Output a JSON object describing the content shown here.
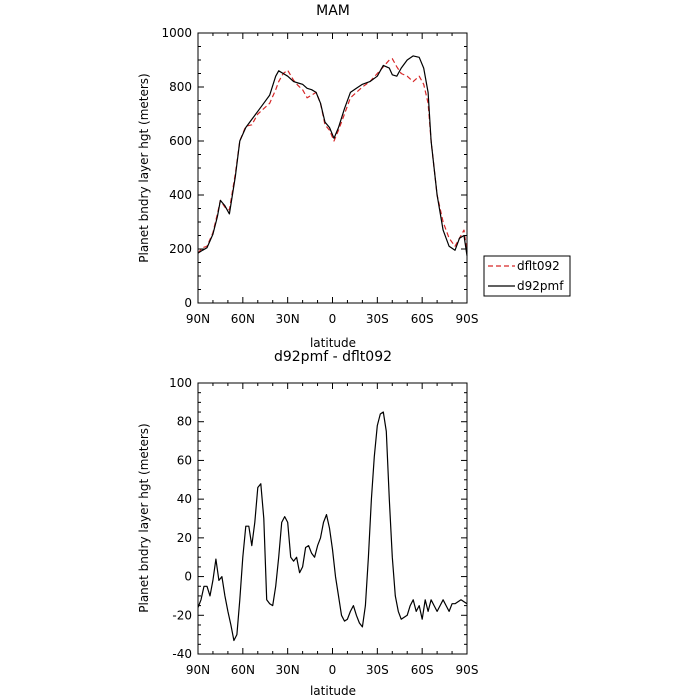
{
  "chart_data": [
    {
      "type": "line",
      "title": "MAM",
      "xlabel": "latitude",
      "ylabel": "Planet bndry layer hgt (meters)",
      "xlim": [
        90,
        -90
      ],
      "ylim": [
        0,
        1000
      ],
      "xticks": [
        90,
        60,
        30,
        0,
        -30,
        -60,
        -90
      ],
      "xtick_labels": [
        "90N",
        "60N",
        "30N",
        "0",
        "30S",
        "60S",
        "90S"
      ],
      "yticks": [
        0,
        200,
        400,
        600,
        800,
        1000
      ],
      "ytick_labels": [
        "0",
        "200",
        "400",
        "600",
        "800",
        "1000"
      ],
      "grid": false,
      "legend": "right, outside",
      "series": [
        {
          "name": "dflt092",
          "color": "#d62728",
          "dash": "dashed",
          "x": [
            90,
            87,
            84,
            80,
            77,
            75,
            72,
            69,
            65,
            62,
            58,
            54,
            50,
            46,
            42,
            38,
            36,
            33,
            30,
            26,
            23,
            20,
            17,
            14,
            11,
            8,
            5,
            2,
            -1,
            -4,
            -8,
            -12,
            -16,
            -20,
            -25,
            -30,
            -34,
            -38,
            -40,
            -43,
            -46,
            -50,
            -54,
            -58,
            -61,
            -64,
            -66,
            -70,
            -74,
            -78,
            -82,
            -85,
            -88,
            -90
          ],
          "y": [
            185,
            205,
            210,
            260,
            330,
            380,
            355,
            345,
            480,
            600,
            655,
            660,
            700,
            720,
            740,
            790,
            820,
            850,
            862,
            825,
            805,
            790,
            760,
            770,
            780,
            740,
            660,
            640,
            600,
            640,
            700,
            760,
            780,
            800,
            820,
            850,
            875,
            900,
            905,
            875,
            850,
            840,
            820,
            840,
            810,
            740,
            600,
            400,
            300,
            240,
            210,
            240,
            270,
            190
          ]
        },
        {
          "name": "d92pmf",
          "color": "#000000",
          "dash": "solid",
          "x": [
            90,
            87,
            84,
            80,
            77,
            75,
            72,
            69,
            65,
            62,
            58,
            54,
            50,
            46,
            42,
            38,
            36,
            33,
            30,
            26,
            23,
            20,
            17,
            14,
            11,
            8,
            5,
            2,
            -1,
            -4,
            -8,
            -12,
            -16,
            -20,
            -25,
            -30,
            -34,
            -38,
            -40,
            -43,
            -46,
            -50,
            -54,
            -58,
            -61,
            -64,
            -66,
            -70,
            -74,
            -78,
            -82,
            -85,
            -88,
            -90
          ],
          "y": [
            185,
            195,
            205,
            255,
            320,
            380,
            360,
            330,
            470,
            600,
            650,
            680,
            710,
            740,
            770,
            840,
            860,
            850,
            840,
            820,
            815,
            810,
            795,
            790,
            780,
            740,
            670,
            650,
            610,
            650,
            720,
            780,
            795,
            810,
            820,
            840,
            880,
            870,
            845,
            840,
            870,
            900,
            915,
            910,
            870,
            780,
            600,
            400,
            270,
            210,
            195,
            240,
            250,
            175
          ]
        }
      ]
    },
    {
      "type": "line",
      "title": "d92pmf - dflt092",
      "xlabel": "latitude",
      "ylabel": "Planet bndry layer hgt (meters)",
      "xlim": [
        90,
        -90
      ],
      "ylim": [
        -40,
        100
      ],
      "xticks": [
        90,
        60,
        30,
        0,
        -30,
        -60,
        -90
      ],
      "xtick_labels": [
        "90N",
        "60N",
        "30N",
        "0",
        "30S",
        "60S",
        "90S"
      ],
      "yticks": [
        -40,
        -20,
        0,
        20,
        40,
        60,
        80,
        100
      ],
      "ytick_labels": [
        "-40",
        "-20",
        "0",
        "20",
        "40",
        "60",
        "80",
        "100"
      ],
      "grid": false,
      "series": [
        {
          "color": "#000000",
          "dash": "solid",
          "x": [
            90,
            88,
            86,
            84,
            82,
            80,
            78,
            76,
            74,
            72,
            70,
            68,
            66,
            64,
            62,
            60,
            58,
            56,
            54,
            52,
            50,
            48,
            46,
            44,
            42,
            40,
            38,
            36,
            34,
            32,
            30,
            28,
            26,
            24,
            22,
            20,
            18,
            16,
            14,
            12,
            10,
            8,
            6,
            4,
            2,
            0,
            -2,
            -4,
            -6,
            -8,
            -10,
            -12,
            -14,
            -16,
            -18,
            -20,
            -22,
            -24,
            -26,
            -28,
            -30,
            -32,
            -34,
            -36,
            -38,
            -40,
            -42,
            -44,
            -46,
            -48,
            -50,
            -52,
            -54,
            -56,
            -58,
            -60,
            -62,
            -64,
            -66,
            -68,
            -70,
            -72,
            -74,
            -76,
            -78,
            -80,
            -82,
            -84,
            -86,
            -88,
            -90
          ],
          "y": [
            -16,
            -12,
            -5,
            -5,
            -10,
            -2,
            9,
            -2,
            0,
            -10,
            -18,
            -25,
            -33,
            -30,
            -12,
            10,
            26,
            26,
            16,
            28,
            46,
            48,
            30,
            -12,
            -14,
            -15,
            -5,
            10,
            28,
            31,
            28,
            10,
            8,
            10,
            2,
            5,
            15,
            16,
            12,
            10,
            16,
            20,
            28,
            32,
            25,
            14,
            0,
            -10,
            -20,
            -23,
            -22,
            -18,
            -15,
            -20,
            -24,
            -26,
            -15,
            10,
            40,
            62,
            78,
            84,
            85,
            75,
            40,
            10,
            -10,
            -18,
            -22,
            -21,
            -20,
            -15,
            -12,
            -18,
            -15,
            -22,
            -12,
            -18,
            -12,
            -15,
            -18,
            -15,
            -12,
            -15,
            -18,
            -14,
            -14,
            -13,
            -12,
            -13,
            -14
          ]
        }
      ]
    }
  ]
}
